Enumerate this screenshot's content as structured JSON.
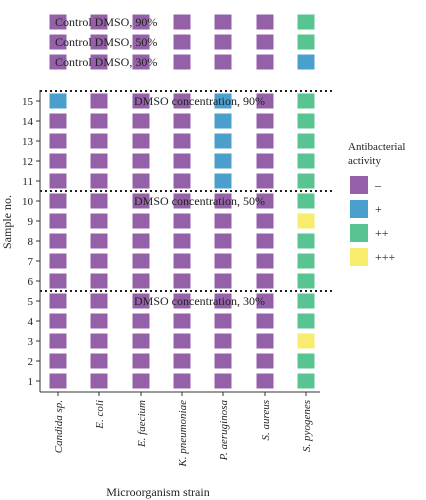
{
  "chart_data": {
    "type": "heatmap",
    "xlabel": "Microorganism strain",
    "ylabel": "Sample no.",
    "x_categories": [
      "Candida sp.",
      "E. coli",
      "E. faecium",
      "K. pneumoniae",
      "P. aeruginosa",
      "S. aureus",
      "S. pyogenes"
    ],
    "legend": {
      "title": "Antibacterial activity",
      "levels": [
        {
          "key": "-",
          "label": "–",
          "color": "#9460a8"
        },
        {
          "key": "+",
          "label": "+",
          "color": "#4a9fcc"
        },
        {
          "key": "++",
          "label": "++",
          "color": "#57c492"
        },
        {
          "key": "+++",
          "label": "+++",
          "color": "#f7ec6e"
        }
      ],
      "placement": "right"
    },
    "controls": [
      {
        "label": "Control DMSO, 90%",
        "values": [
          "-",
          "-",
          "-",
          "-",
          "-",
          "-",
          "++"
        ]
      },
      {
        "label": "Control DMSO, 50%",
        "values": [
          "-",
          "-",
          "-",
          "-",
          "-",
          "-",
          "++"
        ]
      },
      {
        "label": "Control DMSO, 30%",
        "values": [
          "-",
          "-",
          "-",
          "-",
          "-",
          "-",
          "+"
        ]
      }
    ],
    "group_labels": [
      "DMSO concentration, 90%",
      "DMSO concentration, 50%",
      "DMSO concentration, 30%"
    ],
    "sample_ticks": [
      "15",
      "14",
      "13",
      "12",
      "11",
      "10",
      "9",
      "8",
      "7",
      "6",
      "5",
      "4",
      "3",
      "2",
      "1"
    ],
    "samples": [
      {
        "sample": 15,
        "values": [
          "+",
          "-",
          "-",
          "-",
          "+",
          "-",
          "++"
        ]
      },
      {
        "sample": 14,
        "values": [
          "-",
          "-",
          "-",
          "-",
          "+",
          "-",
          "++"
        ]
      },
      {
        "sample": 13,
        "values": [
          "-",
          "-",
          "-",
          "-",
          "+",
          "-",
          "++"
        ]
      },
      {
        "sample": 12,
        "values": [
          "-",
          "-",
          "-",
          "-",
          "+",
          "-",
          "++"
        ]
      },
      {
        "sample": 11,
        "values": [
          "-",
          "-",
          "-",
          "-",
          "+",
          "-",
          "++"
        ]
      },
      {
        "sample": 10,
        "values": [
          "-",
          "-",
          "-",
          "-",
          "-",
          "-",
          "++"
        ]
      },
      {
        "sample": 9,
        "values": [
          "-",
          "-",
          "-",
          "-",
          "-",
          "-",
          "+++"
        ]
      },
      {
        "sample": 8,
        "values": [
          "-",
          "-",
          "-",
          "-",
          "-",
          "-",
          "++"
        ]
      },
      {
        "sample": 7,
        "values": [
          "-",
          "-",
          "-",
          "-",
          "-",
          "-",
          "++"
        ]
      },
      {
        "sample": 6,
        "values": [
          "-",
          "-",
          "-",
          "-",
          "-",
          "-",
          "++"
        ]
      },
      {
        "sample": 5,
        "values": [
          "-",
          "-",
          "-",
          "-",
          "-",
          "-",
          "++"
        ]
      },
      {
        "sample": 4,
        "values": [
          "-",
          "-",
          "-",
          "-",
          "-",
          "-",
          "++"
        ]
      },
      {
        "sample": 3,
        "values": [
          "-",
          "-",
          "-",
          "-",
          "-",
          "-",
          "+++"
        ]
      },
      {
        "sample": 2,
        "values": [
          "-",
          "-",
          "-",
          "-",
          "-",
          "-",
          "++"
        ]
      },
      {
        "sample": 1,
        "values": [
          "-",
          "-",
          "-",
          "-",
          "-",
          "-",
          "++"
        ]
      }
    ]
  }
}
